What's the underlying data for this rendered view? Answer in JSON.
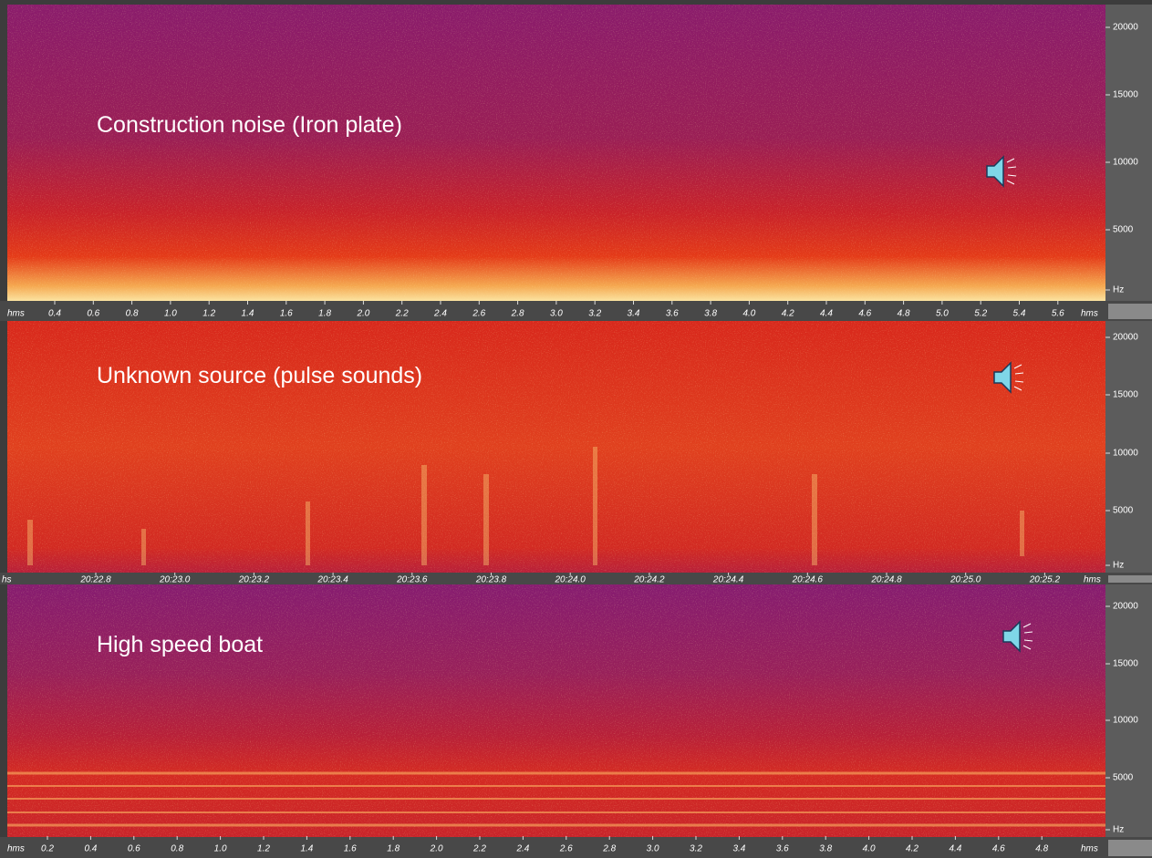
{
  "panels": [
    {
      "title": "Construction noise (Iron plate)",
      "freq_labels": [
        "20000",
        "15000",
        "10000",
        "5000",
        "Hz"
      ],
      "time_start": "hms",
      "time_end": "hms",
      "time_labels": [
        "0.4",
        "0.6",
        "0.8",
        "1.0",
        "1.2",
        "1.4",
        "1.6",
        "1.8",
        "2.0",
        "2.2",
        "2.4",
        "2.6",
        "2.8",
        "3.0",
        "3.2",
        "3.4",
        "3.6",
        "3.8",
        "4.0",
        "4.2",
        "4.4",
        "4.6",
        "4.8",
        "5.0",
        "5.2",
        "5.4",
        "5.6"
      ]
    },
    {
      "title": "Unknown source (pulse sounds)",
      "freq_labels": [
        "20000",
        "15000",
        "10000",
        "5000",
        "Hz"
      ],
      "time_start": "hs",
      "time_end": "hms",
      "time_labels": [
        "20:22.8",
        "20:23.0",
        "20:23.2",
        "20:23.4",
        "20:23.6",
        "20:23.8",
        "20:24.0",
        "20:24.2",
        "20:24.4",
        "20:24.6",
        "20:24.8",
        "20:25.0",
        "20:25.2"
      ]
    },
    {
      "title": "High speed boat",
      "freq_labels": [
        "20000",
        "15000",
        "10000",
        "5000",
        "Hz"
      ],
      "time_start": "hms",
      "time_end": "hms",
      "time_labels": [
        "0.2",
        "0.4",
        "0.6",
        "0.8",
        "1.0",
        "1.2",
        "1.4",
        "1.6",
        "1.8",
        "2.0",
        "2.2",
        "2.4",
        "2.6",
        "2.8",
        "3.0",
        "3.2",
        "3.4",
        "3.6",
        "3.8",
        "4.0",
        "4.2",
        "4.4",
        "4.6",
        "4.8"
      ]
    }
  ]
}
